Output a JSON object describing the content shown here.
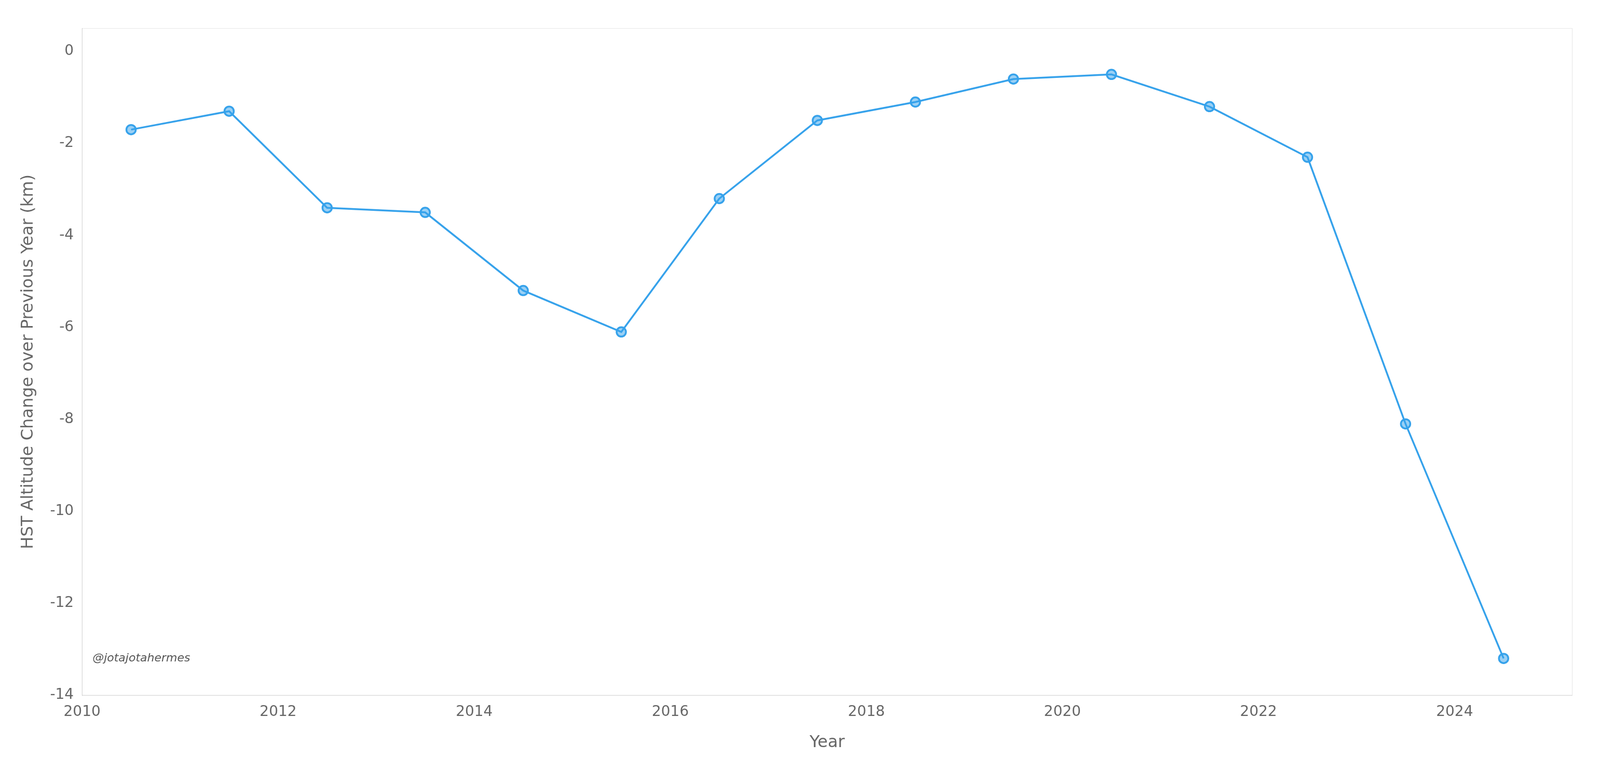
{
  "chart_data": {
    "type": "line",
    "x": [
      2010.5,
      2011.5,
      2012.5,
      2013.5,
      2014.5,
      2015.5,
      2016.5,
      2017.5,
      2018.5,
      2019.5,
      2020.5,
      2021.5,
      2022.5,
      2023.5,
      2024.5
    ],
    "values": [
      -1.7,
      -1.3,
      -3.4,
      -3.5,
      -5.2,
      -6.1,
      -3.2,
      -1.5,
      -1.1,
      -0.6,
      -0.5,
      -1.2,
      -2.3,
      -8.1,
      -13.2
    ],
    "marker": "circle",
    "xlabel": "Year",
    "ylabel": "HST Altitude Change over Previous Year (km)",
    "xlim": [
      2010,
      2025.2
    ],
    "ylim": [
      -14,
      0.5
    ],
    "xticks": [
      2010,
      2012,
      2014,
      2016,
      2018,
      2020,
      2022,
      2024
    ],
    "yticks": [
      0,
      -2,
      -4,
      -6,
      -8,
      -10,
      -12,
      -14
    ],
    "annotation": "@jotajotahermes",
    "grid": false
  }
}
